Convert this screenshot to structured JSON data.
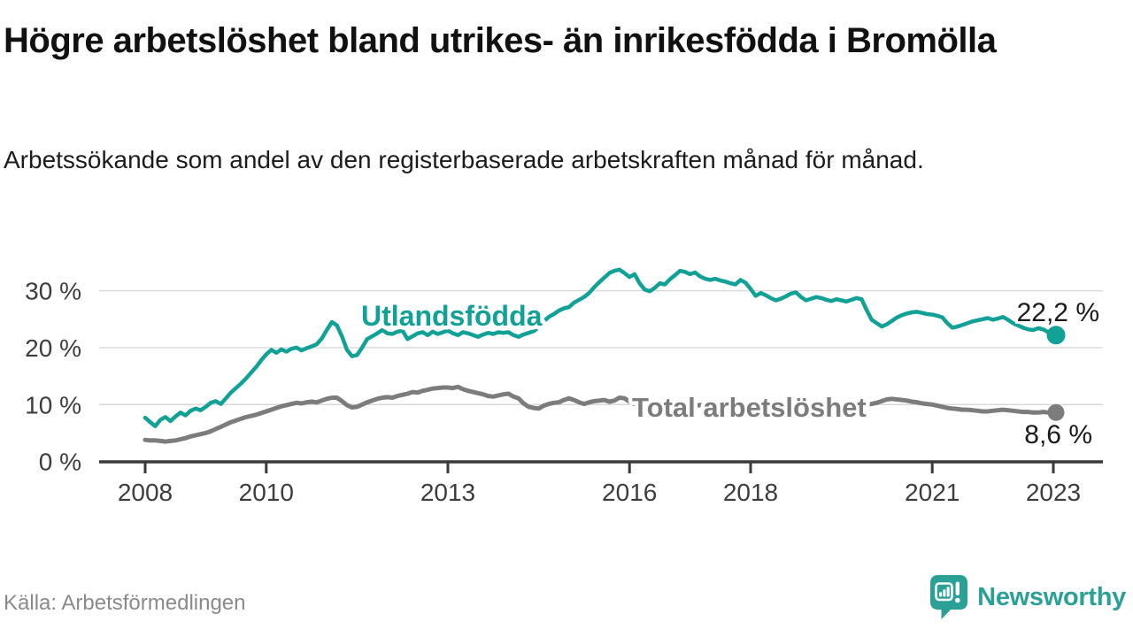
{
  "header": {
    "title": "Högre arbetslöshet bland utrikes- än inrikesfödda i Bromölla",
    "subtitle": "Arbetssökande som andel av den registerbaserade arbetskraften månad för månad."
  },
  "footer": {
    "source": "Källa: Arbetsförmedlingen",
    "brand": "Newsworthy",
    "brand_icon": "newsworthy-speech-bubble-bar-chart-icon"
  },
  "colors": {
    "series_foreign": "#12a197",
    "series_total": "#7c7c7c",
    "axis": "#3a3a3a",
    "tick_label": "#3d3d3d",
    "grid": "#d9d9d9",
    "value_label": "#1a1a1a",
    "brand_teal": "#2aa096",
    "background": "#ffffff"
  },
  "chart_data": {
    "type": "line",
    "title": "Högre arbetslöshet bland utrikes- än inrikesfödda i Bromölla",
    "subtitle": "Arbetssökande som andel av den registerbaserade arbetskraften månad för månad.",
    "source": "Källa: Arbetsförmedlingen",
    "x": {
      "start_year": 2008,
      "end_year": 2023,
      "frequency": "monthly"
    },
    "x_ticks": [
      2008,
      2010,
      2013,
      2016,
      2018,
      2021,
      2023
    ],
    "y_ticks": [
      0,
      10,
      20,
      30
    ],
    "y_tick_suffix": " %",
    "ylim": [
      0,
      35.5
    ],
    "grid": "horizontal",
    "legend_position": "inline-labels",
    "series": [
      {
        "name": "Utlandsfödda",
        "color": "#12a197",
        "end_value": 22.2,
        "end_label": "22,2 %",
        "values": [
          7.7,
          6.9,
          6.2,
          7.3,
          7.8,
          7.1,
          7.9,
          8.6,
          8.1,
          8.9,
          9.3,
          9.0,
          9.6,
          10.3,
          10.6,
          10.1,
          11.1,
          12.1,
          12.9,
          13.7,
          14.6,
          15.6,
          16.6,
          17.8,
          18.8,
          19.6,
          19.1,
          19.7,
          19.3,
          19.8,
          20.0,
          19.5,
          19.9,
          20.2,
          20.6,
          21.6,
          23.1,
          24.5,
          23.9,
          22.0,
          19.6,
          18.5,
          18.7,
          20.0,
          21.5,
          22.0,
          22.5,
          23.1,
          22.5,
          22.4,
          22.8,
          23.0,
          21.5,
          22.0,
          22.5,
          22.7,
          22.2,
          22.8,
          22.4,
          22.7,
          23.0,
          22.5,
          22.2,
          22.7,
          22.5,
          22.2,
          21.9,
          22.3,
          22.6,
          22.4,
          22.7,
          22.6,
          22.7,
          22.2,
          21.9,
          22.3,
          22.6,
          22.9,
          23.6,
          24.6,
          25.4,
          25.9,
          26.5,
          26.9,
          27.1,
          27.9,
          28.4,
          28.9,
          29.6,
          30.6,
          31.5,
          32.3,
          33.1,
          33.5,
          33.7,
          33.1,
          32.4,
          32.9,
          31.3,
          30.2,
          29.9,
          30.5,
          31.3,
          31.1,
          32.0,
          32.7,
          33.5,
          33.3,
          32.9,
          33.2,
          32.5,
          32.1,
          31.9,
          32.1,
          31.8,
          31.6,
          31.3,
          31.1,
          31.9,
          31.4,
          30.3,
          29.1,
          29.6,
          29.2,
          28.7,
          28.3,
          28.6,
          29.0,
          29.5,
          29.7,
          28.9,
          28.3,
          28.6,
          28.9,
          28.7,
          28.4,
          28.2,
          28.5,
          28.3,
          28.1,
          28.4,
          28.7,
          28.5,
          26.6,
          24.9,
          24.3,
          23.7,
          24.1,
          24.7,
          25.3,
          25.7,
          26.0,
          26.2,
          26.3,
          26.1,
          25.9,
          25.8,
          25.6,
          25.3,
          24.3,
          23.5,
          23.7,
          24.0,
          24.3,
          24.6,
          24.8,
          25.0,
          25.2,
          24.9,
          25.1,
          25.4,
          24.9,
          24.3,
          23.9,
          23.5,
          23.2,
          23.1,
          23.4,
          23.2,
          22.7,
          22.2
        ]
      },
      {
        "name": "Total arbetslöshet",
        "color": "#7c7c7c",
        "end_value": 8.6,
        "end_label": "8,6 %",
        "values": [
          3.8,
          3.7,
          3.7,
          3.6,
          3.5,
          3.6,
          3.7,
          3.9,
          4.1,
          4.4,
          4.6,
          4.8,
          5.0,
          5.3,
          5.7,
          6.1,
          6.5,
          6.9,
          7.2,
          7.5,
          7.8,
          8.0,
          8.2,
          8.5,
          8.8,
          9.1,
          9.4,
          9.7,
          9.9,
          10.1,
          10.3,
          10.2,
          10.4,
          10.5,
          10.4,
          10.7,
          11.0,
          11.2,
          11.2,
          10.6,
          9.9,
          9.5,
          9.6,
          10.0,
          10.4,
          10.7,
          11.0,
          11.2,
          11.3,
          11.2,
          11.5,
          11.7,
          11.9,
          12.2,
          12.1,
          12.4,
          12.6,
          12.8,
          12.9,
          13.0,
          13.0,
          12.9,
          13.1,
          12.7,
          12.4,
          12.2,
          12.0,
          11.8,
          11.5,
          11.4,
          11.6,
          11.8,
          11.9,
          11.4,
          11.1,
          10.2,
          9.6,
          9.4,
          9.3,
          9.8,
          10.1,
          10.3,
          10.4,
          10.8,
          11.1,
          10.8,
          10.4,
          10.1,
          10.4,
          10.6,
          10.7,
          10.8,
          10.5,
          10.7,
          11.2,
          11.1,
          10.5,
          10.1,
          9.8,
          9.6,
          9.7,
          9.9,
          10.1,
          10.3,
          10.4,
          10.2,
          10.1,
          10.0,
          9.9,
          9.8,
          9.9,
          10.0,
          9.9,
          9.8,
          9.7,
          9.8,
          9.9,
          9.8,
          9.7,
          9.6,
          9.5,
          9.4,
          9.5,
          9.6,
          9.5,
          9.4,
          9.5,
          9.6,
          9.7,
          9.8,
          9.9,
          9.9,
          10.0,
          9.9,
          9.8,
          9.8,
          9.9,
          9.9,
          9.8,
          9.9,
          10.0,
          9.9,
          9.9,
          10.0,
          10.1,
          10.3,
          10.6,
          10.9,
          11.0,
          10.9,
          10.8,
          10.7,
          10.5,
          10.4,
          10.2,
          10.1,
          10.0,
          9.8,
          9.6,
          9.4,
          9.3,
          9.2,
          9.1,
          9.1,
          9.0,
          8.9,
          8.8,
          8.8,
          8.9,
          9.0,
          9.1,
          9.0,
          8.9,
          8.8,
          8.7,
          8.7,
          8.6,
          8.6,
          8.7,
          8.6,
          8.6
        ]
      }
    ]
  }
}
